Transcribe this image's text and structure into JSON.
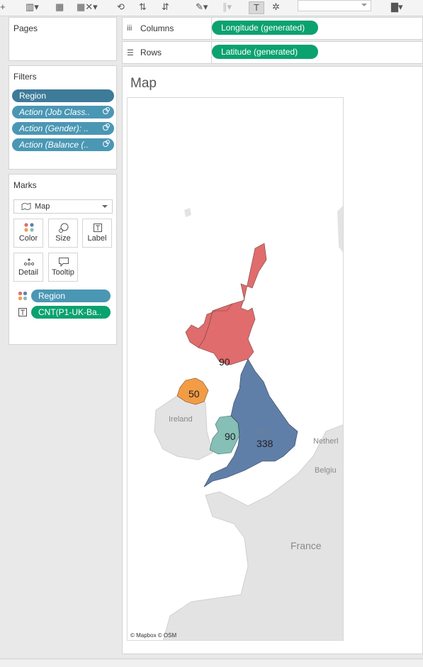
{
  "shelves": {
    "columns": {
      "label": "Columns",
      "pill": "Longitude (generated)"
    },
    "rows": {
      "label": "Rows",
      "pill": "Latitude (generated)"
    }
  },
  "pages": {
    "title": "Pages"
  },
  "filters": {
    "title": "Filters",
    "items": [
      {
        "label": "Region"
      },
      {
        "label": "Action (Job Class.."
      },
      {
        "label": "Action (Gender): .."
      },
      {
        "label": "Action (Balance (.."
      }
    ]
  },
  "marks": {
    "title": "Marks",
    "mark_type": "Map",
    "buttons": [
      {
        "label": "Color",
        "icon": "color-dots-icon"
      },
      {
        "label": "Size",
        "icon": "size-icon"
      },
      {
        "label": "Label",
        "icon": "label-icon"
      },
      {
        "label": "Detail",
        "icon": "detail-icon"
      },
      {
        "label": "Tooltip",
        "icon": "tooltip-icon"
      }
    ],
    "fields": [
      {
        "label": "Region",
        "icon": "color-dots-icon"
      },
      {
        "label": "CNT(P1-UK-Ba..",
        "icon": "label-icon"
      }
    ]
  },
  "viz": {
    "title": "Map",
    "map": {
      "regions": [
        {
          "name": "Scotland",
          "value": "90",
          "color": "#e06c6d"
        },
        {
          "name": "Northern Ireland",
          "value": "50",
          "color": "#f29c45"
        },
        {
          "name": "Wales",
          "value": "90",
          "color": "#85bfb5"
        },
        {
          "name": "England",
          "value": "338",
          "color": "#5f7fa8"
        }
      ],
      "place_labels": [
        "Ireland",
        "United\nKi",
        "Netherl",
        "Belgiu",
        "France"
      ],
      "attribution": "© Mapbox © OSM"
    }
  },
  "colors": {
    "green_pill": "#0ba26f",
    "filter_dark": "#3e7b99",
    "filter_action": "#4a97b4"
  }
}
